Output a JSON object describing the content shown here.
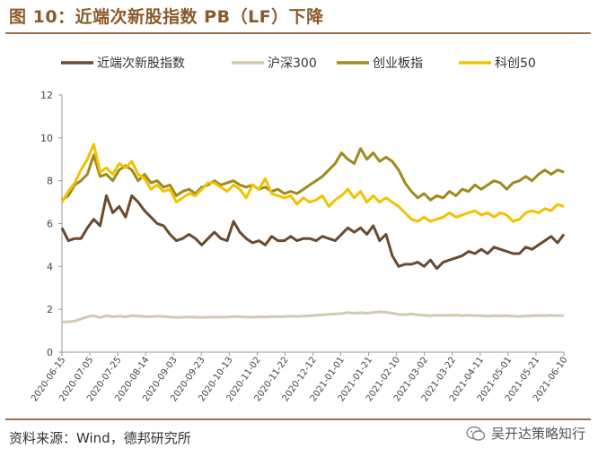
{
  "title": "图 10：近端次新股指数 PB（LF）下降",
  "source": "资料来源：Wind，德邦研究所",
  "watermark": "吴开达策略知行",
  "chart_data": {
    "type": "line",
    "title": "近端次新股指数 PB（LF）下降",
    "xlabel": "",
    "ylabel": "",
    "ylim": [
      0,
      12
    ],
    "yticks": [
      0,
      2,
      4,
      6,
      8,
      10,
      12
    ],
    "grid": false,
    "legend_position": "top",
    "x_tick_labels": [
      "2020-06-15",
      "2020-07-05",
      "2020-07-25",
      "2020-08-14",
      "2020-09-03",
      "2020-09-23",
      "2020-10-13",
      "2020-11-02",
      "2020-11-22",
      "2020-12-12",
      "2021-01-01",
      "2021-01-21",
      "2021-02-10",
      "2021-03-02",
      "2021-03-22",
      "2021-04-11",
      "2021-05-01",
      "2021-05-21",
      "2021-06-10"
    ],
    "series": [
      {
        "name": "近端次新股指数",
        "color": "#6B4A2E",
        "values": [
          5.8,
          5.2,
          5.3,
          5.3,
          5.8,
          6.2,
          5.9,
          7.3,
          6.5,
          6.8,
          6.3,
          7.3,
          7.0,
          6.6,
          6.3,
          6.0,
          5.9,
          5.5,
          5.2,
          5.3,
          5.5,
          5.3,
          5.0,
          5.3,
          5.6,
          5.3,
          5.2,
          6.1,
          5.6,
          5.3,
          5.1,
          5.2,
          5.0,
          5.4,
          5.2,
          5.2,
          5.4,
          5.2,
          5.3,
          5.3,
          5.2,
          5.4,
          5.3,
          5.2,
          5.5,
          5.8,
          5.6,
          5.8,
          5.5,
          5.9,
          5.2,
          5.5,
          4.5,
          4.0,
          4.1,
          4.1,
          4.2,
          4.0,
          4.3,
          3.9,
          4.2,
          4.3,
          4.4,
          4.5,
          4.7,
          4.6,
          4.8,
          4.6,
          4.9,
          4.8,
          4.7,
          4.6,
          4.6,
          4.9,
          4.8,
          5.0,
          5.2,
          5.4,
          5.1,
          5.5
        ]
      },
      {
        "name": "沪深300",
        "color": "#D2CBAE",
        "values": [
          1.4,
          1.42,
          1.45,
          1.55,
          1.65,
          1.7,
          1.62,
          1.7,
          1.65,
          1.68,
          1.65,
          1.7,
          1.68,
          1.66,
          1.65,
          1.68,
          1.66,
          1.64,
          1.62,
          1.63,
          1.64,
          1.63,
          1.62,
          1.63,
          1.64,
          1.63,
          1.64,
          1.66,
          1.65,
          1.64,
          1.63,
          1.65,
          1.64,
          1.66,
          1.65,
          1.66,
          1.68,
          1.67,
          1.68,
          1.7,
          1.72,
          1.74,
          1.76,
          1.78,
          1.8,
          1.85,
          1.82,
          1.84,
          1.82,
          1.85,
          1.88,
          1.86,
          1.82,
          1.76,
          1.75,
          1.78,
          1.74,
          1.72,
          1.7,
          1.72,
          1.71,
          1.72,
          1.73,
          1.7,
          1.72,
          1.71,
          1.7,
          1.68,
          1.7,
          1.69,
          1.7,
          1.68,
          1.67,
          1.68,
          1.7,
          1.71,
          1.7,
          1.72,
          1.7,
          1.71
        ]
      },
      {
        "name": "创业板指",
        "color": "#A08A1E",
        "values": [
          7.1,
          7.3,
          7.8,
          8.0,
          8.3,
          9.2,
          8.2,
          8.3,
          8.0,
          8.5,
          8.7,
          8.5,
          8.0,
          8.3,
          7.9,
          8.0,
          7.7,
          7.8,
          7.3,
          7.5,
          7.6,
          7.4,
          7.7,
          7.8,
          8.0,
          7.8,
          7.9,
          8.0,
          7.8,
          7.7,
          7.8,
          7.6,
          7.7,
          7.5,
          7.6,
          7.4,
          7.5,
          7.4,
          7.6,
          7.8,
          8.0,
          8.2,
          8.5,
          8.8,
          9.3,
          9.0,
          8.8,
          9.5,
          9.0,
          9.3,
          8.9,
          9.1,
          8.9,
          8.5,
          7.9,
          7.5,
          7.2,
          7.4,
          7.1,
          7.3,
          7.2,
          7.5,
          7.3,
          7.6,
          7.5,
          7.8,
          7.6,
          7.8,
          8.0,
          7.9,
          7.6,
          7.9,
          8.0,
          8.2,
          8.0,
          8.3,
          8.5,
          8.3,
          8.5,
          8.4
        ]
      },
      {
        "name": "科创50",
        "color": "#F2C200",
        "values": [
          7.0,
          7.5,
          7.9,
          8.5,
          9.0,
          9.7,
          8.4,
          8.6,
          8.3,
          8.8,
          8.6,
          8.9,
          8.3,
          8.1,
          7.6,
          7.8,
          7.5,
          7.6,
          7.0,
          7.2,
          7.4,
          7.3,
          7.6,
          7.9,
          7.9,
          7.7,
          7.5,
          7.8,
          7.6,
          7.2,
          7.8,
          7.6,
          8.1,
          7.4,
          7.3,
          7.2,
          7.3,
          6.9,
          7.2,
          7.0,
          7.1,
          7.3,
          6.8,
          7.1,
          7.3,
          7.6,
          7.2,
          7.5,
          7.0,
          7.3,
          7.0,
          7.2,
          7.0,
          6.8,
          6.5,
          6.2,
          6.1,
          6.3,
          6.1,
          6.2,
          6.3,
          6.5,
          6.3,
          6.4,
          6.5,
          6.6,
          6.4,
          6.5,
          6.3,
          6.5,
          6.4,
          6.1,
          6.2,
          6.5,
          6.6,
          6.5,
          6.7,
          6.6,
          6.9,
          6.8
        ]
      }
    ]
  }
}
